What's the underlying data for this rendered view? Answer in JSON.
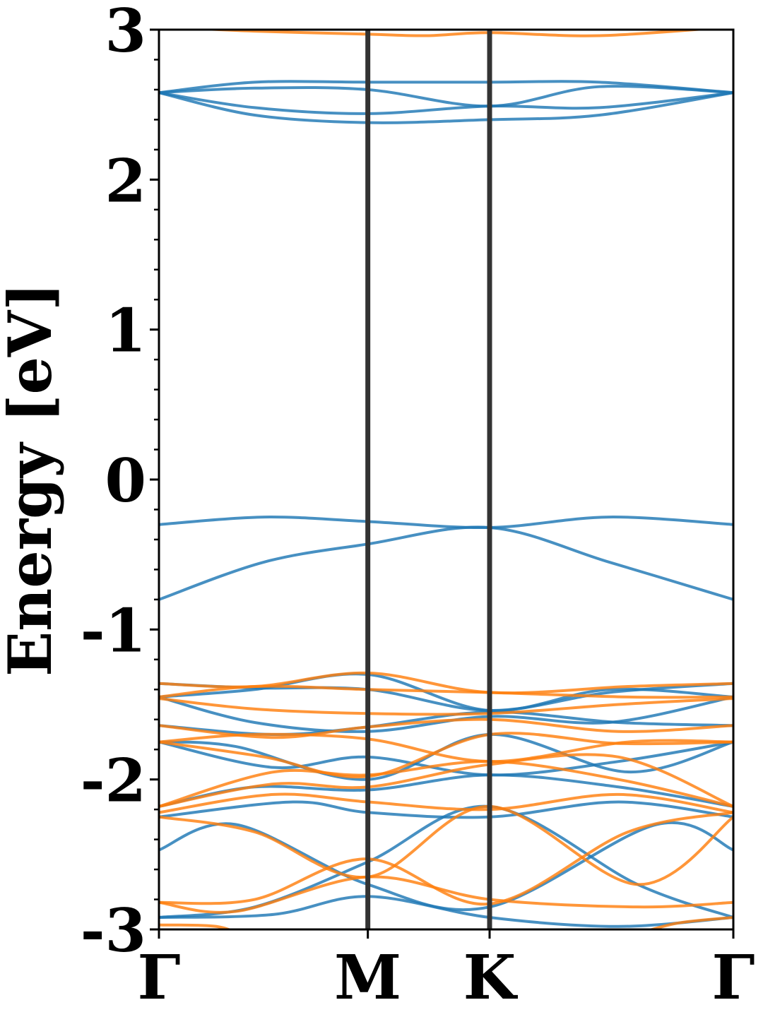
{
  "chart_data": {
    "type": "line",
    "ylabel": "Energy [eV]",
    "xlabel": "",
    "ylim": [
      -3,
      3
    ],
    "xlim": [
      0,
      3.0
    ],
    "y_ticks": [
      "-3",
      "-2",
      "-1",
      "0",
      "1",
      "2",
      "3"
    ],
    "y_tick_values": [
      -3,
      -2,
      -1,
      0,
      1,
      2,
      3
    ],
    "y_minor_step": 0.2,
    "k_points": [
      {
        "label": "Γ",
        "x": 0.0
      },
      {
        "label": "M",
        "x": 1.091
      },
      {
        "label": "K",
        "x": 1.727
      },
      {
        "label": "Γ",
        "x": 3.0
      }
    ],
    "grid": false,
    "colors": {
      "spin_a": "#1f77b4",
      "spin_b": "#ff7f0e",
      "hsp_line": "#333333"
    },
    "series": [
      {
        "group": "spin_a",
        "x": [
          0,
          0.55,
          1.091,
          1.727,
          2.35,
          3.0
        ],
        "y": [
          -0.3,
          -0.25,
          -0.28,
          -0.32,
          -0.25,
          -0.3
        ]
      },
      {
        "group": "spin_a",
        "x": [
          0,
          0.55,
          1.091,
          1.727,
          2.35,
          3.0
        ],
        "y": [
          -0.8,
          -0.55,
          -0.43,
          -0.32,
          -0.55,
          -0.8
        ]
      },
      {
        "group": "spin_a",
        "x": [
          0,
          0.5,
          1.091,
          1.727,
          2.3,
          3.0
        ],
        "y": [
          2.58,
          2.65,
          2.65,
          2.65,
          2.65,
          2.58
        ]
      },
      {
        "group": "spin_a",
        "x": [
          0,
          0.5,
          1.091,
          1.727,
          2.3,
          3.0
        ],
        "y": [
          2.58,
          2.61,
          2.6,
          2.49,
          2.62,
          2.58
        ]
      },
      {
        "group": "spin_a",
        "x": [
          0,
          0.5,
          1.091,
          1.727,
          2.3,
          3.0
        ],
        "y": [
          2.58,
          2.48,
          2.44,
          2.49,
          2.48,
          2.58
        ]
      },
      {
        "group": "spin_a",
        "x": [
          0,
          0.5,
          1.091,
          1.727,
          2.3,
          3.0
        ],
        "y": [
          2.58,
          2.43,
          2.38,
          2.4,
          2.43,
          2.58
        ]
      },
      {
        "group": "spin_b",
        "x": [
          0,
          0.5,
          1.091,
          1.4,
          1.727,
          2.3,
          3.0
        ],
        "y": [
          3.02,
          2.99,
          2.97,
          2.96,
          2.98,
          2.96,
          3.02
        ]
      },
      {
        "group": "spin_a",
        "x": [
          0,
          0.5,
          1.091,
          1.727,
          2.35,
          3.0
        ],
        "y": [
          -1.36,
          -1.39,
          -1.4,
          -1.54,
          -1.42,
          -1.36
        ]
      },
      {
        "group": "spin_a",
        "x": [
          0,
          0.5,
          1.091,
          1.727,
          2.35,
          3.0
        ],
        "y": [
          -1.45,
          -1.4,
          -1.3,
          -1.54,
          -1.4,
          -1.45
        ]
      },
      {
        "group": "spin_a",
        "x": [
          0,
          0.5,
          1.091,
          1.727,
          2.35,
          3.0
        ],
        "y": [
          -1.45,
          -1.62,
          -1.68,
          -1.58,
          -1.62,
          -1.45
        ]
      },
      {
        "group": "spin_a",
        "x": [
          0,
          0.6,
          1.091,
          1.727,
          2.4,
          3.0
        ],
        "y": [
          -1.64,
          -1.7,
          -1.65,
          -1.55,
          -1.62,
          -1.64
        ]
      },
      {
        "group": "spin_a",
        "x": [
          0,
          0.6,
          1.091,
          1.727,
          2.4,
          3.0
        ],
        "y": [
          -1.75,
          -1.92,
          -1.85,
          -1.97,
          -1.88,
          -1.75
        ]
      },
      {
        "group": "spin_a",
        "x": [
          0,
          0.4,
          1.091,
          1.727,
          2.45,
          3.0
        ],
        "y": [
          -1.75,
          -1.78,
          -2.0,
          -1.7,
          -1.95,
          -1.75
        ]
      },
      {
        "group": "spin_a",
        "x": [
          0,
          0.5,
          1.091,
          1.727,
          2.4,
          3.0
        ],
        "y": [
          -2.18,
          -2.05,
          -2.07,
          -1.97,
          -2.05,
          -2.18
        ]
      },
      {
        "group": "spin_a",
        "x": [
          0,
          0.7,
          1.091,
          1.727,
          2.4,
          3.0
        ],
        "y": [
          -2.25,
          -2.15,
          -2.22,
          -2.25,
          -2.15,
          -2.25
        ]
      },
      {
        "group": "spin_a",
        "x": [
          0,
          0.4,
          1.091,
          1.727,
          2.6,
          3.0
        ],
        "y": [
          -2.47,
          -2.3,
          -2.7,
          -2.85,
          -2.3,
          -2.47
        ]
      },
      {
        "group": "spin_a",
        "x": [
          0,
          0.5,
          1.091,
          1.727,
          2.5,
          3.0
        ],
        "y": [
          -2.92,
          -2.85,
          -2.55,
          -2.18,
          -2.7,
          -2.92
        ]
      },
      {
        "group": "spin_a",
        "x": [
          0,
          0.6,
          1.091,
          1.727,
          2.4,
          3.0
        ],
        "y": [
          -2.92,
          -2.9,
          -2.78,
          -2.92,
          -2.98,
          -2.92
        ]
      },
      {
        "group": "spin_b",
        "x": [
          0,
          0.5,
          1.091,
          1.727,
          2.45,
          3.0
        ],
        "y": [
          -1.36,
          -1.38,
          -1.29,
          -1.42,
          -1.38,
          -1.36
        ]
      },
      {
        "group": "spin_b",
        "x": [
          0,
          0.5,
          1.091,
          1.727,
          2.45,
          3.0
        ],
        "y": [
          -1.45,
          -1.38,
          -1.4,
          -1.42,
          -1.45,
          -1.45
        ]
      },
      {
        "group": "spin_b",
        "x": [
          0,
          0.5,
          1.091,
          1.727,
          2.4,
          3.0
        ],
        "y": [
          -1.46,
          -1.53,
          -1.56,
          -1.56,
          -1.5,
          -1.46
        ]
      },
      {
        "group": "spin_b",
        "x": [
          0,
          0.6,
          1.091,
          1.727,
          2.4,
          3.0
        ],
        "y": [
          -1.64,
          -1.72,
          -1.65,
          -1.6,
          -1.68,
          -1.64
        ]
      },
      {
        "group": "spin_b",
        "x": [
          0,
          0.55,
          1.091,
          1.727,
          2.4,
          3.0
        ],
        "y": [
          -1.75,
          -1.85,
          -1.98,
          -1.7,
          -1.76,
          -1.75
        ]
      },
      {
        "group": "spin_b",
        "x": [
          0,
          0.5,
          1.091,
          1.727,
          2.45,
          3.0
        ],
        "y": [
          -1.75,
          -1.7,
          -1.73,
          -1.88,
          -1.75,
          -1.75
        ]
      },
      {
        "group": "spin_b",
        "x": [
          0,
          0.6,
          1.091,
          1.727,
          2.4,
          3.0
        ],
        "y": [
          -2.18,
          -2.03,
          -2.05,
          -1.9,
          -1.85,
          -2.18
        ]
      },
      {
        "group": "spin_b",
        "x": [
          0,
          0.6,
          1.091,
          1.727,
          2.4,
          3.0
        ],
        "y": [
          -2.18,
          -1.95,
          -1.97,
          -1.88,
          -2.0,
          -2.18
        ]
      },
      {
        "group": "spin_b",
        "x": [
          0,
          0.6,
          1.091,
          1.727,
          2.4,
          3.0
        ],
        "y": [
          -2.22,
          -2.1,
          -2.15,
          -2.2,
          -2.1,
          -2.22
        ]
      },
      {
        "group": "spin_b",
        "x": [
          0,
          0.5,
          1.091,
          1.727,
          2.5,
          3.0
        ],
        "y": [
          -2.25,
          -2.35,
          -2.65,
          -2.18,
          -2.7,
          -2.25
        ]
      },
      {
        "group": "spin_b",
        "x": [
          0,
          0.5,
          1.091,
          1.727,
          2.45,
          3.0
        ],
        "y": [
          -2.82,
          -2.8,
          -2.53,
          -2.83,
          -2.35,
          -2.22
        ]
      },
      {
        "group": "spin_b",
        "x": [
          0,
          0.4,
          1.091,
          1.727,
          2.5,
          3.0
        ],
        "y": [
          -2.82,
          -2.88,
          -2.65,
          -2.8,
          -2.85,
          -2.82
        ]
      },
      {
        "group": "spin_b",
        "x": [
          0,
          0.3,
          0.45
        ],
        "y": [
          -2.97,
          -2.98,
          -3.05
        ]
      },
      {
        "group": "spin_b",
        "x": [
          2.45,
          2.7,
          3.0
        ],
        "y": [
          -3.05,
          -2.96,
          -2.92
        ]
      }
    ]
  }
}
